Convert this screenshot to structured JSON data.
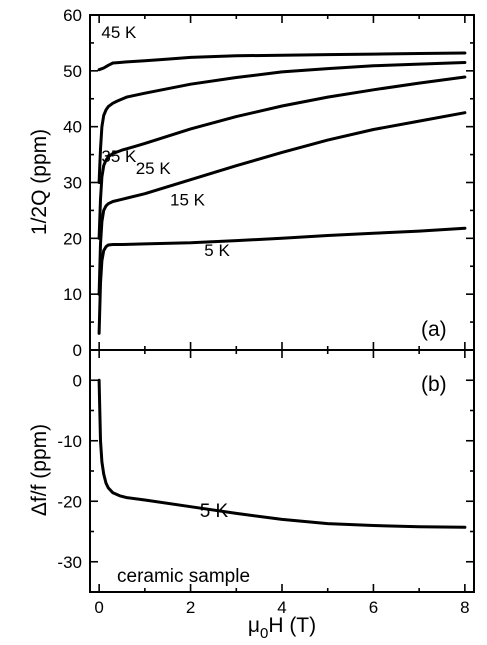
{
  "chart_data": [
    {
      "panel_label": "(a)",
      "type": "line",
      "xlabel": "μ₀H (T)",
      "ylabel": "1/2Q (ppm)",
      "xlim": [
        -0.2,
        8.2
      ],
      "ylim": [
        0,
        60
      ],
      "xticks": [
        0,
        2,
        4,
        6,
        8
      ],
      "yticks": [
        0,
        10,
        20,
        30,
        40,
        50,
        60
      ],
      "ytick_labels": [
        "0",
        "10",
        "20",
        "30",
        "40",
        "50",
        "60"
      ],
      "series": [
        {
          "name": "45 K",
          "x": [
            0,
            0.1,
            0.2,
            0.3,
            0.45,
            0.6,
            1,
            1.5,
            2,
            3,
            4,
            5,
            6,
            7,
            8
          ],
          "y": [
            50.2,
            50.5,
            51.0,
            51.4,
            51.5,
            51.6,
            51.8,
            52.1,
            52.4,
            52.7,
            52.8,
            52.9,
            53.0,
            53.1,
            53.2
          ]
        },
        {
          "name": "35 K",
          "x": [
            0,
            0.03,
            0.06,
            0.1,
            0.15,
            0.2,
            0.3,
            0.4,
            0.6,
            1,
            2,
            3,
            4,
            5,
            6,
            7,
            8
          ],
          "y": [
            30,
            36,
            40,
            42,
            43,
            43.6,
            44.2,
            44.6,
            45.3,
            46.0,
            47.6,
            48.8,
            49.8,
            50.4,
            50.9,
            51.2,
            51.5
          ]
        },
        {
          "name": "25 K",
          "x": [
            0,
            0.03,
            0.06,
            0.1,
            0.15,
            0.2,
            0.3,
            0.5,
            0.8,
            1,
            2,
            3,
            4,
            5,
            6,
            7,
            8
          ],
          "y": [
            20,
            27,
            31,
            33,
            34,
            34.6,
            35.2,
            35.8,
            36.5,
            37.0,
            39.6,
            41.8,
            43.7,
            45.3,
            46.6,
            47.8,
            48.9
          ]
        },
        {
          "name": "15 K",
          "x": [
            0,
            0.03,
            0.06,
            0.1,
            0.15,
            0.2,
            0.3,
            0.5,
            1,
            2,
            3,
            4,
            5,
            6,
            7,
            8
          ],
          "y": [
            10,
            19,
            23,
            25,
            25.8,
            26.2,
            26.6,
            27.0,
            28.0,
            30.5,
            33.0,
            35.4,
            37.6,
            39.5,
            41.0,
            42.5
          ]
        },
        {
          "name": "5 K",
          "x": [
            0,
            0.03,
            0.06,
            0.1,
            0.15,
            0.2,
            0.3,
            0.5,
            1,
            2,
            3,
            4,
            5,
            6,
            7,
            8
          ],
          "y": [
            3,
            12,
            16,
            17.8,
            18.5,
            18.8,
            18.9,
            18.9,
            19.0,
            19.2,
            19.6,
            20.0,
            20.5,
            20.9,
            21.3,
            21.8
          ]
        }
      ]
    },
    {
      "panel_label": "(b)",
      "type": "line",
      "xlabel": "μ₀H (T)",
      "ylabel": "Δf/f (ppm)",
      "xlim": [
        -0.2,
        8.2
      ],
      "ylim": [
        -35,
        5
      ],
      "xticks": [
        0,
        2,
        4,
        6,
        8
      ],
      "xtick_labels": [
        "0",
        "2",
        "4",
        "6",
        "8"
      ],
      "yticks": [
        0,
        -10,
        -20,
        -30
      ],
      "ytick_labels": [
        "0",
        "-10",
        "-20",
        "-30"
      ],
      "annotation": "ceramic sample",
      "series": [
        {
          "name": "5 K",
          "x": [
            0,
            0.03,
            0.06,
            0.1,
            0.15,
            0.2,
            0.3,
            0.45,
            0.6,
            1,
            2,
            3,
            4,
            5,
            6,
            7,
            8
          ],
          "y": [
            0,
            -10,
            -13.5,
            -15.5,
            -17,
            -17.8,
            -18.6,
            -19.1,
            -19.4,
            -19.8,
            -20.9,
            -22.0,
            -23.0,
            -23.7,
            -24.0,
            -24.2,
            -24.3
          ]
        }
      ]
    }
  ],
  "colors": {
    "line": "#000000",
    "axis": "#000000",
    "background": "#ffffff"
  }
}
